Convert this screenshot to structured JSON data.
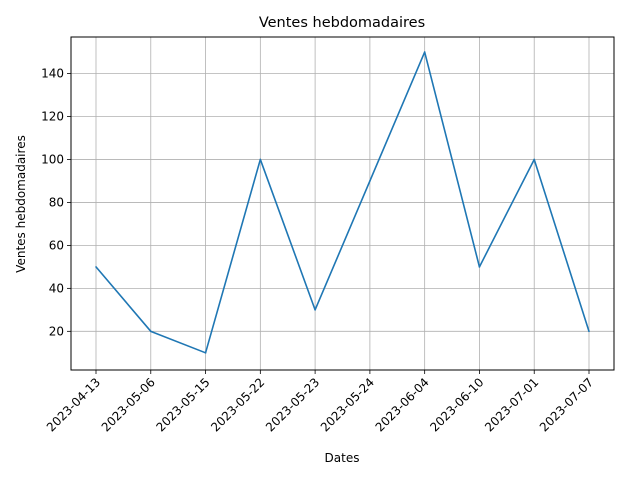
{
  "chart_data": {
    "type": "line",
    "title": "Ventes hebdomadaires",
    "xlabel": "Dates",
    "ylabel": "Ventes hebdomadaires",
    "categories": [
      "2023-04-13",
      "2023-05-06",
      "2023-05-15",
      "2023-05-22",
      "2023-05-23",
      "2023-05-24",
      "2023-06-04",
      "2023-06-10",
      "2023-07-01",
      "2023-07-07"
    ],
    "series": [
      {
        "values": [
          50,
          20,
          10,
          100,
          30,
          90,
          150,
          50,
          100,
          20
        ]
      }
    ],
    "ylim": [
      2,
      157
    ],
    "yticks": [
      20,
      40,
      60,
      80,
      100,
      120,
      140
    ],
    "grid": true,
    "line_color": "#1f77b4",
    "grid_color": "#b0b0b0"
  }
}
